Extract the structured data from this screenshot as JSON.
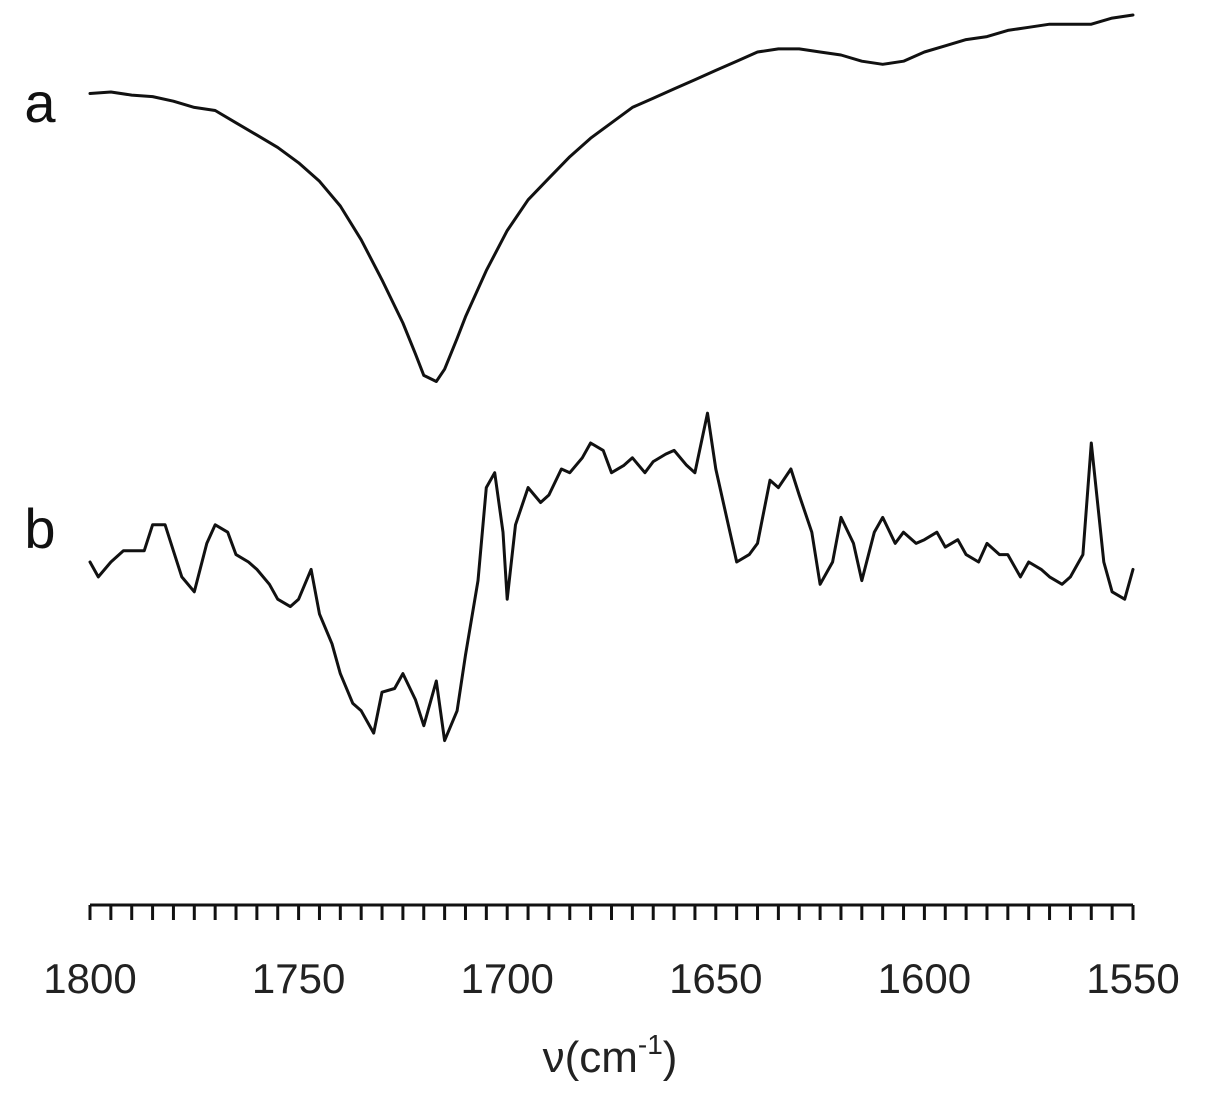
{
  "chart_data": {
    "type": "line",
    "xlabel": "ν(cm",
    "xlabel_sup": "-1",
    "xlabel_close": ")",
    "ylabel": "",
    "x_reversed": true,
    "xlim": [
      1800,
      1550
    ],
    "xticks": [
      "1800",
      "1750",
      "1700",
      "1650",
      "1600",
      "1550"
    ],
    "grid": false,
    "legend": "none",
    "line_color": "#111111",
    "series": [
      {
        "name": "a",
        "x": [
          1800,
          1795,
          1790,
          1785,
          1780,
          1775,
          1770,
          1765,
          1760,
          1755,
          1750,
          1745,
          1740,
          1735,
          1730,
          1725,
          1722,
          1720,
          1717,
          1715,
          1712,
          1710,
          1705,
          1700,
          1695,
          1690,
          1685,
          1680,
          1675,
          1670,
          1665,
          1660,
          1655,
          1650,
          1645,
          1640,
          1635,
          1630,
          1625,
          1620,
          1615,
          1610,
          1605,
          1600,
          1595,
          1590,
          1585,
          1580,
          1575,
          1570,
          1565,
          1560,
          1555,
          1550
        ],
        "y": [
          0.995,
          1.0,
          0.99,
          0.985,
          0.97,
          0.95,
          0.94,
          0.9,
          0.86,
          0.82,
          0.77,
          0.71,
          0.63,
          0.52,
          0.39,
          0.25,
          0.15,
          0.08,
          0.06,
          0.1,
          0.2,
          0.27,
          0.42,
          0.55,
          0.65,
          0.72,
          0.79,
          0.85,
          0.9,
          0.95,
          0.98,
          1.01,
          1.04,
          1.07,
          1.1,
          1.13,
          1.14,
          1.14,
          1.13,
          1.12,
          1.1,
          1.09,
          1.1,
          1.13,
          1.15,
          1.17,
          1.18,
          1.2,
          1.21,
          1.22,
          1.22,
          1.22,
          1.24,
          1.25
        ]
      },
      {
        "name": "b",
        "x": [
          1800,
          1798,
          1795,
          1792,
          1790,
          1787,
          1785,
          1782,
          1780,
          1778,
          1775,
          1772,
          1770,
          1767,
          1765,
          1762,
          1760,
          1757,
          1755,
          1752,
          1750,
          1747,
          1745,
          1742,
          1740,
          1737,
          1735,
          1732,
          1730,
          1727,
          1725,
          1722,
          1720,
          1717,
          1715,
          1712,
          1710,
          1707,
          1705,
          1703,
          1701,
          1700,
          1698,
          1695,
          1692,
          1690,
          1687,
          1685,
          1682,
          1680,
          1677,
          1675,
          1672,
          1670,
          1667,
          1665,
          1662,
          1660,
          1657,
          1655,
          1652,
          1650,
          1647,
          1645,
          1642,
          1640,
          1637,
          1635,
          1632,
          1630,
          1627,
          1625,
          1622,
          1620,
          1617,
          1615,
          1612,
          1610,
          1607,
          1605,
          1602,
          1600,
          1597,
          1595,
          1592,
          1590,
          1587,
          1585,
          1582,
          1580,
          1577,
          1575,
          1572,
          1570,
          1567,
          1565,
          1562,
          1560,
          1557,
          1555,
          1552,
          1550
        ],
        "y": [
          0.5,
          0.46,
          0.5,
          0.53,
          0.53,
          0.53,
          0.6,
          0.6,
          0.53,
          0.46,
          0.42,
          0.55,
          0.6,
          0.58,
          0.52,
          0.5,
          0.48,
          0.44,
          0.4,
          0.38,
          0.4,
          0.48,
          0.36,
          0.28,
          0.2,
          0.12,
          0.1,
          0.04,
          0.15,
          0.16,
          0.2,
          0.13,
          0.06,
          0.18,
          0.02,
          0.1,
          0.25,
          0.45,
          0.7,
          0.74,
          0.58,
          0.4,
          0.6,
          0.7,
          0.66,
          0.68,
          0.75,
          0.74,
          0.78,
          0.82,
          0.8,
          0.74,
          0.76,
          0.78,
          0.74,
          0.77,
          0.79,
          0.8,
          0.76,
          0.74,
          0.9,
          0.75,
          0.6,
          0.5,
          0.52,
          0.55,
          0.72,
          0.7,
          0.75,
          0.68,
          0.58,
          0.44,
          0.5,
          0.62,
          0.55,
          0.45,
          0.58,
          0.62,
          0.55,
          0.58,
          0.55,
          0.56,
          0.58,
          0.54,
          0.56,
          0.52,
          0.5,
          0.55,
          0.52,
          0.52,
          0.46,
          0.5,
          0.48,
          0.46,
          0.44,
          0.46,
          0.52,
          0.82,
          0.5,
          0.42,
          0.4,
          0.48
        ]
      }
    ]
  }
}
